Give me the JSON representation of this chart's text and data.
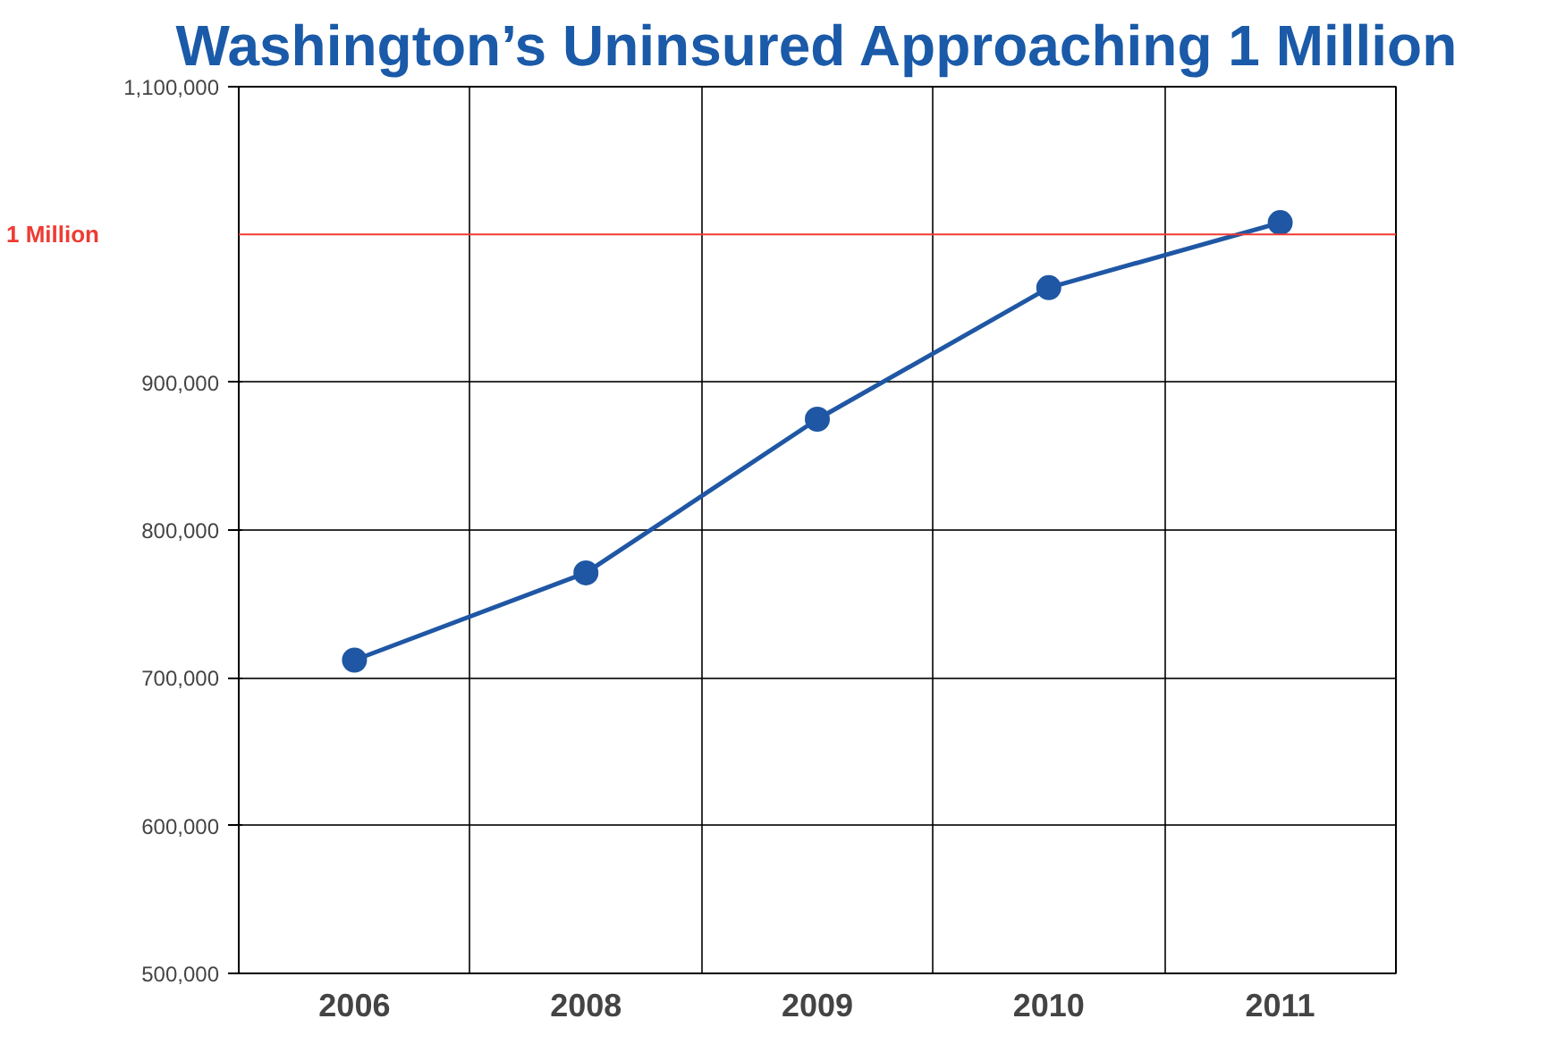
{
  "chart_data": {
    "type": "line",
    "title": "Washington’s Uninsured Approaching 1 Million",
    "categories": [
      "2006",
      "2008",
      "2009",
      "2010",
      "2011"
    ],
    "series": [
      {
        "color": "#1f57a4",
        "values": [
          712000,
          771000,
          875000,
          964000,
          1008000
        ]
      }
    ],
    "ylim": [
      500000,
      1100000
    ],
    "yticks": [
      {
        "value": 500000,
        "label": "500,000"
      },
      {
        "value": 600000,
        "label": "600,000"
      },
      {
        "value": 700000,
        "label": "700,000"
      },
      {
        "value": 800000,
        "label": "800,000"
      },
      {
        "value": 900000,
        "label": "900,000"
      },
      {
        "value": 1100000,
        "label": "1,100,000"
      }
    ],
    "ref_lines": [
      {
        "axis": "y",
        "value": 1000000,
        "label": "1 Million",
        "color": "#ee3b33"
      }
    ],
    "grid": true,
    "marker": "circle",
    "line_style": "solid"
  }
}
